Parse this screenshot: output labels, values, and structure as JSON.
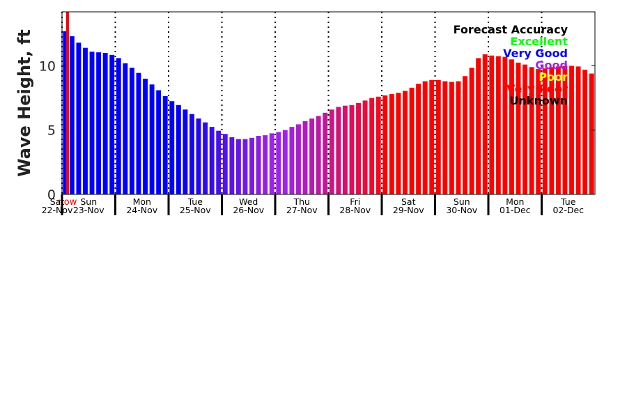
{
  "chart_data": {
    "type": "bar",
    "ylabel": "Wave Height, ft",
    "ylim": [
      0,
      14.2
    ],
    "yticks": [
      0,
      5,
      10
    ],
    "x_start_hour": 0,
    "x_end_hour": 240,
    "bar_interval_hours": 3,
    "day_labels": [
      {
        "weekday": "Sat",
        "date": "22-Nov",
        "hour": -12
      },
      {
        "weekday": "Sun",
        "date": "23-Nov",
        "hour": 12
      },
      {
        "weekday": "Mon",
        "date": "24-Nov",
        "hour": 36
      },
      {
        "weekday": "Tue",
        "date": "25-Nov",
        "hour": 60
      },
      {
        "weekday": "Wed",
        "date": "26-Nov",
        "hour": 84
      },
      {
        "weekday": "Thu",
        "date": "27-Nov",
        "hour": 108
      },
      {
        "weekday": "Fri",
        "date": "28-Nov",
        "hour": 132
      },
      {
        "weekday": "Sat",
        "date": "29-Nov",
        "hour": 156
      },
      {
        "weekday": "Sun",
        "date": "30-Nov",
        "hour": 180
      },
      {
        "weekday": "Mon",
        "date": "01-Dec",
        "hour": 204
      },
      {
        "weekday": "Tue",
        "date": "02-Dec",
        "hour": 228
      }
    ],
    "day_boundaries_hours": [
      0,
      24,
      48,
      72,
      96,
      120,
      144,
      168,
      192,
      216
    ],
    "now": {
      "label": "now",
      "hour": 2.5,
      "color": "#ff0000"
    },
    "legend": {
      "title": "Forecast Accuracy",
      "placement": "top-right",
      "entries": [
        {
          "label": "Excellent",
          "color": "#00ff00"
        },
        {
          "label": "Very Good",
          "color": "#0000ff"
        },
        {
          "label": "Good",
          "color": "#a020f0"
        },
        {
          "label": "Poor",
          "color": "#ffff00"
        },
        {
          "label": "Very Poor",
          "color": "#ff0000"
        },
        {
          "label": "Unknown",
          "color": "#000000"
        }
      ]
    },
    "series": [
      {
        "values": [
          12.7,
          12.3,
          11.8,
          11.4,
          11.1,
          11.05,
          11.0,
          10.85,
          10.6,
          10.2,
          9.85,
          9.45,
          9.0,
          8.55,
          8.1,
          7.65,
          7.25,
          6.95,
          6.6,
          6.25,
          5.9,
          5.6,
          5.25,
          4.95,
          4.7,
          4.45,
          4.3,
          4.3,
          4.4,
          4.55,
          4.6,
          4.75,
          4.85,
          5.0,
          5.25,
          5.45,
          5.7,
          5.9,
          6.1,
          6.35,
          6.6,
          6.8,
          6.9,
          6.95,
          7.1,
          7.3,
          7.5,
          7.6,
          7.7,
          7.8,
          7.9,
          8.05,
          8.3,
          8.6,
          8.8,
          8.9,
          8.9,
          8.8,
          8.75,
          8.8,
          9.2,
          9.85,
          10.6,
          10.9,
          10.8,
          10.75,
          10.7,
          10.5,
          10.25,
          10.1,
          9.9,
          9.75,
          9.8,
          9.9,
          9.95,
          10.0,
          10.0,
          9.95,
          9.7,
          9.4
        ],
        "colors": [
          "#0000ff",
          "#0000ff",
          "#0000ff",
          "#0000ff",
          "#0000ff",
          "#0000ff",
          "#0000ff",
          "#0000ff",
          "#0000ff",
          "#0000ff",
          "#0000ff",
          "#0000ff",
          "#0000ff",
          "#0000ff",
          "#0000ff",
          "#0000ff",
          "#0000ff",
          "#0000ff",
          "#0b02f7",
          "#1705f5",
          "#2207f3",
          "#2e0af1",
          "#390cef",
          "#450fee",
          "#5011ec",
          "#5c14ea",
          "#6716e8",
          "#7319e6",
          "#7e1be4",
          "#8a1ee2",
          "#9520e0",
          "#a020f0",
          "#a020f0",
          "#a020f0",
          "#a71ee1",
          "#ad1cd2",
          "#b41ac3",
          "#ba18b4",
          "#c116a5",
          "#c71496",
          "#ce1287",
          "#d41078",
          "#db0e69",
          "#e10c5a",
          "#e80a4b",
          "#ee083c",
          "#f5062d",
          "#fb041e",
          "#ff0000",
          "#ff0000",
          "#ff0000",
          "#ff0000",
          "#ff0000",
          "#ff0000",
          "#ff0000",
          "#ff0000",
          "#ff0000",
          "#ff0000",
          "#ff0000",
          "#ff0000",
          "#ff0000",
          "#ff0000",
          "#ff0000",
          "#ff0000",
          "#ff0000",
          "#ff0000",
          "#ff0000",
          "#ff0000",
          "#ff0000",
          "#ff0000",
          "#ff0000",
          "#ff0000",
          "#ff0000",
          "#ff0000",
          "#ff0000",
          "#ff0000",
          "#ff0000",
          "#ff0000",
          "#ff0000",
          "#ff0000"
        ]
      }
    ]
  }
}
